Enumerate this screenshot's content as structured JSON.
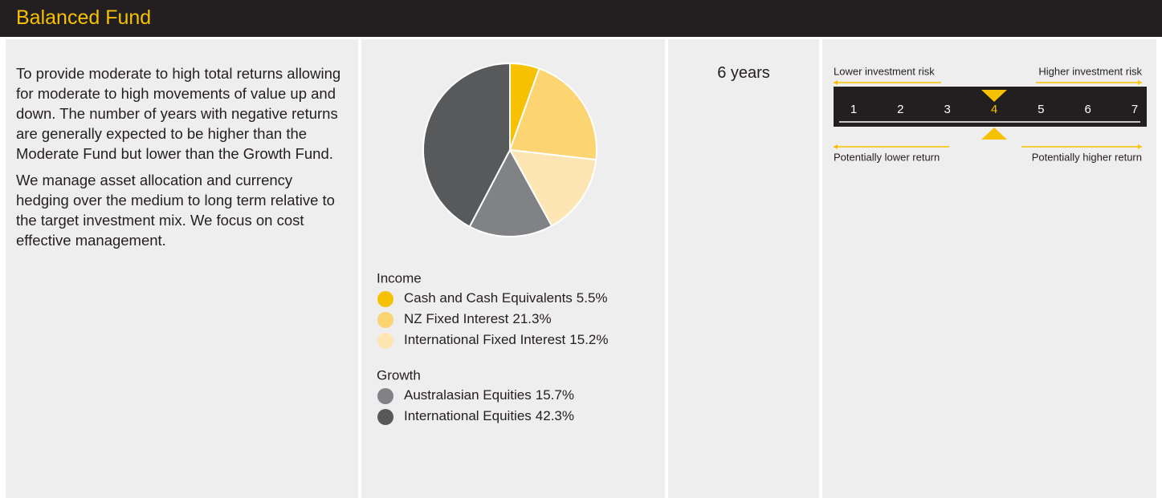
{
  "header": {
    "title": "Balanced Fund"
  },
  "description": [
    "To provide moderate to high total returns allowing for moderate to high movements of value up and down. The number of years with negative returns are generally expected to be higher than the Moderate Fund but lower than the Growth Fund.",
    "We manage asset allocation and currency hedging over the medium to long term relative to the target investment mix. We focus on cost effective management."
  ],
  "chart_data": {
    "type": "pie",
    "groups": [
      {
        "name": "Income",
        "categories": [
          "Cash and Cash Equivalents",
          "NZ Fixed Interest",
          "International Fixed Interest"
        ],
        "values": [
          5.5,
          21.3,
          15.2
        ],
        "value_labels": [
          "5.5%",
          "21.3%",
          "15.2%"
        ],
        "colors": [
          "#f6c100",
          "#fcd472",
          "#fde6b3"
        ]
      },
      {
        "name": "Growth",
        "categories": [
          "Australasian Equities",
          "International Equities"
        ],
        "values": [
          15.7,
          42.3
        ],
        "value_labels": [
          "15.7%",
          "42.3%"
        ],
        "colors": [
          "#808285",
          "#58595b"
        ]
      }
    ]
  },
  "timeframe": "6 years",
  "risk_scale": {
    "lower_risk": "Lower investment risk",
    "higher_risk": "Higher investment risk",
    "lower_return": "Potentially lower return",
    "higher_return": "Potentially higher return",
    "levels": [
      1,
      2,
      3,
      4,
      5,
      6,
      7
    ],
    "selected": 4,
    "highlight_color": "#f6c100"
  }
}
